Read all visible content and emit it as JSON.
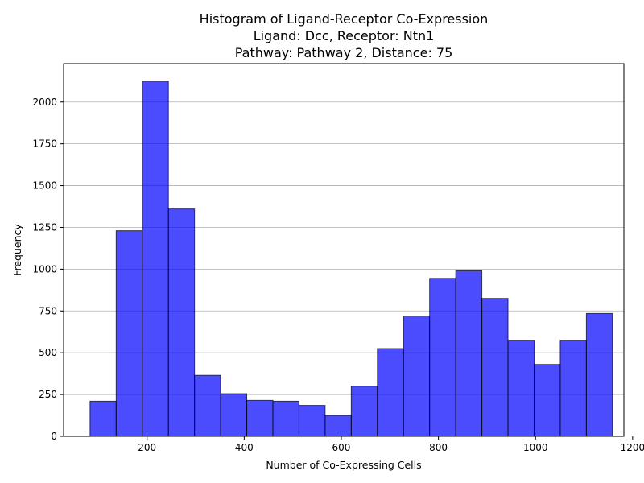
{
  "chart_data": {
    "type": "bar",
    "title_lines": [
      "Histogram of Ligand-Receptor Co-Expression",
      "Ligand: Dcc, Receptor: Ntn1",
      "Pathway: Pathway 2, Distance: 75"
    ],
    "xlabel": "Number of Co-Expressing Cells",
    "ylabel": "Frequency",
    "xlim": [
      28,
      1182
    ],
    "ylim": [
      0,
      2230
    ],
    "x_ticks": [
      200,
      400,
      600,
      800,
      1000,
      1200
    ],
    "y_ticks": [
      0,
      250,
      500,
      750,
      1000,
      1250,
      1500,
      1750,
      2000
    ],
    "grid": "y",
    "bar_color": "#0000ff",
    "bar_edge_color": "#000000",
    "bins": [
      {
        "x0": 82.5,
        "x1": 136.3,
        "count": 210
      },
      {
        "x0": 136.3,
        "x1": 190.1,
        "count": 1230
      },
      {
        "x0": 190.1,
        "x1": 243.9,
        "count": 2125
      },
      {
        "x0": 243.9,
        "x1": 297.7,
        "count": 1360
      },
      {
        "x0": 297.7,
        "x1": 351.5,
        "count": 365
      },
      {
        "x0": 351.5,
        "x1": 405.3,
        "count": 255
      },
      {
        "x0": 405.3,
        "x1": 459.1,
        "count": 215
      },
      {
        "x0": 459.1,
        "x1": 512.9,
        "count": 210
      },
      {
        "x0": 512.9,
        "x1": 566.7,
        "count": 185
      },
      {
        "x0": 566.7,
        "x1": 620.5,
        "count": 125
      },
      {
        "x0": 620.5,
        "x1": 674.3,
        "count": 300
      },
      {
        "x0": 674.3,
        "x1": 728.1,
        "count": 525
      },
      {
        "x0": 728.1,
        "x1": 781.9,
        "count": 720
      },
      {
        "x0": 781.9,
        "x1": 835.7,
        "count": 945
      },
      {
        "x0": 835.7,
        "x1": 889.5,
        "count": 990
      },
      {
        "x0": 889.5,
        "x1": 943.3,
        "count": 825
      },
      {
        "x0": 943.3,
        "x1": 997.1,
        "count": 575
      },
      {
        "x0": 997.1,
        "x1": 1050.9,
        "count": 430
      },
      {
        "x0": 1050.9,
        "x1": 1104.7,
        "count": 575
      },
      {
        "x0": 1104.7,
        "x1": 1158.5,
        "count": 735
      }
    ]
  }
}
